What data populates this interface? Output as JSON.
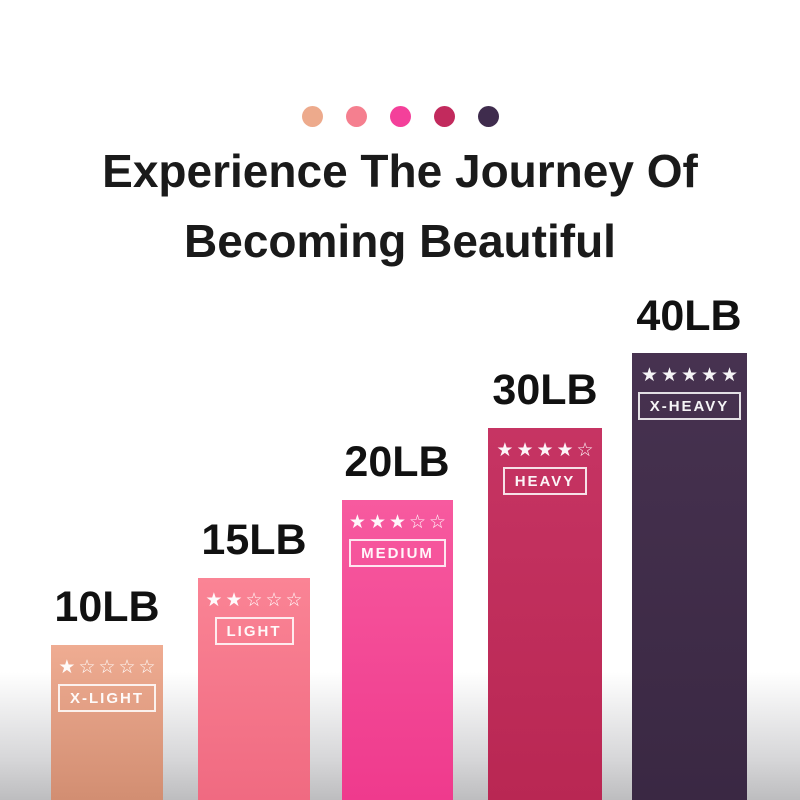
{
  "header": {
    "title_line1": "Experience The Journey Of",
    "title_line2": "Becoming Beautiful"
  },
  "palette_dots": [
    {
      "name": "x-light-dot",
      "color": "#edaa8c"
    },
    {
      "name": "light-dot",
      "color": "#f57f8f"
    },
    {
      "name": "medium-dot",
      "color": "#f4409a"
    },
    {
      "name": "heavy-dot",
      "color": "#c22a5d"
    },
    {
      "name": "x-heavy-dot",
      "color": "#3f2c4d"
    }
  ],
  "chart_data": {
    "type": "bar",
    "title": "Experience The Journey Of Becoming Beautiful",
    "categories": [
      "10LB",
      "15LB",
      "20LB",
      "30LB",
      "40LB"
    ],
    "values": [
      10,
      15,
      20,
      30,
      40
    ],
    "xlabel": "",
    "ylabel": "",
    "legend": "none",
    "grid": false,
    "bars": [
      {
        "weight": "10LB",
        "label": "X-LIGHT",
        "rating": 1,
        "stars": "★☆☆☆☆",
        "color_top": "#efac92",
        "color_bottom": "#d28e72"
      },
      {
        "weight": "15LB",
        "label": "LIGHT",
        "rating": 2,
        "stars": "★★☆☆☆",
        "color_top": "#fa8495",
        "color_bottom": "#f06a81"
      },
      {
        "weight": "20LB",
        "label": "MEDIUM",
        "rating": 3,
        "stars": "★★★☆☆",
        "color_top": "#f75a9f",
        "color_bottom": "#ef3a8d"
      },
      {
        "weight": "30LB",
        "label": "HEAVY",
        "rating": 4,
        "stars": "★★★★☆",
        "color_top": "#c63463",
        "color_bottom": "#b92753"
      },
      {
        "weight": "40LB",
        "label": "X-HEAVY",
        "rating": 5,
        "stars": "★★★★★",
        "color_top": "#473250",
        "color_bottom": "#3a2843"
      }
    ]
  }
}
